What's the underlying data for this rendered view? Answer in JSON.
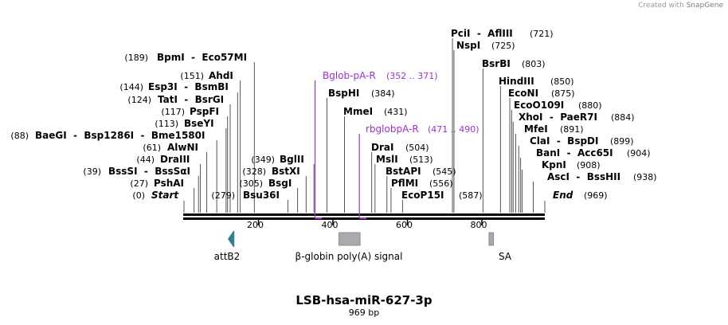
{
  "watermark": {
    "prefix": "Created with",
    "brand": "SnapGene"
  },
  "plasmid": {
    "name": "LSB-hsa-miR-627-3p",
    "size_label": "969 bp",
    "length": 969
  },
  "colors": {
    "primer": "#9933cc",
    "attB2": "#2f7f95",
    "feature_gray": "#a8aab0"
  },
  "axis_ticks": [
    "200",
    "400",
    "600",
    "800"
  ],
  "ends": {
    "start": "Start",
    "start_pos": "(0)",
    "end": "End",
    "end_pos": "(969)"
  },
  "enzymes_left": [
    {
      "pos": "(189)",
      "name": "BpmI  -  Eco57MI",
      "site": 189
    },
    {
      "pos": "(151)",
      "name": "AhdI",
      "site": 151
    },
    {
      "pos": "(144)",
      "name": "Esp3I  -  BsmBI",
      "site": 144
    },
    {
      "pos": "(124)",
      "name": "TatI  -  BsrGI",
      "site": 124
    },
    {
      "pos": "(117)",
      "name": "PspFI",
      "site": 117
    },
    {
      "pos": "(113)",
      "name": "BseYI",
      "site": 113
    },
    {
      "pos": "(88)",
      "name": "BaeGI  -  Bsp1286I  -  Bme1580I",
      "site": 88
    },
    {
      "pos": "(61)",
      "name": "AlwNI",
      "site": 61
    },
    {
      "pos": "(44)",
      "name": "DraIII",
      "site": 44
    },
    {
      "pos": "(39)",
      "name": "BssSI  -  BssSαI",
      "site": 39
    },
    {
      "pos": "(27)",
      "name": "PshAI",
      "site": 27
    }
  ],
  "enzymes_middle": [
    {
      "pos": "(349)",
      "name": "BglII",
      "site": 349
    },
    {
      "pos": "(328)",
      "name": "BstXI",
      "site": 328
    },
    {
      "pos": "(305)",
      "name": "BsgI",
      "site": 305
    },
    {
      "pos": "(279)",
      "name": "Bsu36I",
      "site": 279
    }
  ],
  "enzymes_right": [
    {
      "name": "BspHI",
      "pos": "(384)",
      "site": 384
    },
    {
      "name": "MmeI",
      "pos": "(431)",
      "site": 431
    },
    {
      "name": "DraI",
      "pos": "(504)",
      "site": 504
    },
    {
      "name": "MslI",
      "pos": "(513)",
      "site": 513
    },
    {
      "name": "BstAPI",
      "pos": "(545)",
      "site": 545
    },
    {
      "name": "PflMI",
      "pos": "(556)",
      "site": 556
    },
    {
      "name": "EcoP15I",
      "pos": "(587)",
      "site": 587
    },
    {
      "name": "PciI  -  AflIII",
      "pos": "(721)",
      "site": 721
    },
    {
      "name": "NspI",
      "pos": "(725)",
      "site": 725
    },
    {
      "name": "BsrBI",
      "pos": "(803)",
      "site": 803
    },
    {
      "name": "HindIII",
      "pos": "(850)",
      "site": 850
    },
    {
      "name": "EcoNI",
      "pos": "(875)",
      "site": 875
    },
    {
      "name": "EcoO109I",
      "pos": "(880)",
      "site": 880
    },
    {
      "name": "XhoI  -  PaeR7I",
      "pos": "(884)",
      "site": 884
    },
    {
      "name": "MfeI",
      "pos": "(891)",
      "site": 891
    },
    {
      "name": "ClaI  -  BspDI",
      "pos": "(899)",
      "site": 899
    },
    {
      "name": "BanI  -  Acc65I",
      "pos": "(904)",
      "site": 904
    },
    {
      "name": "KpnI",
      "pos": "(908)",
      "site": 908
    },
    {
      "name": "AscI  -  BssHII",
      "pos": "(938)",
      "site": 938
    }
  ],
  "primers": [
    {
      "name": "Bglob-pA-R",
      "range": "(352 .. 371)",
      "start": 352,
      "end": 371
    },
    {
      "name": "rbglobpA-R",
      "range": "(471 .. 490)",
      "start": 471,
      "end": 490
    }
  ],
  "features": [
    {
      "name": "attB2",
      "start": 124,
      "end": 148,
      "kind": "arrow-left"
    },
    {
      "name": "β-globin poly(A) signal",
      "start": 416,
      "end": 473,
      "kind": "box"
    },
    {
      "name": "SA",
      "start": 819,
      "end": 842,
      "kind": "box"
    }
  ]
}
